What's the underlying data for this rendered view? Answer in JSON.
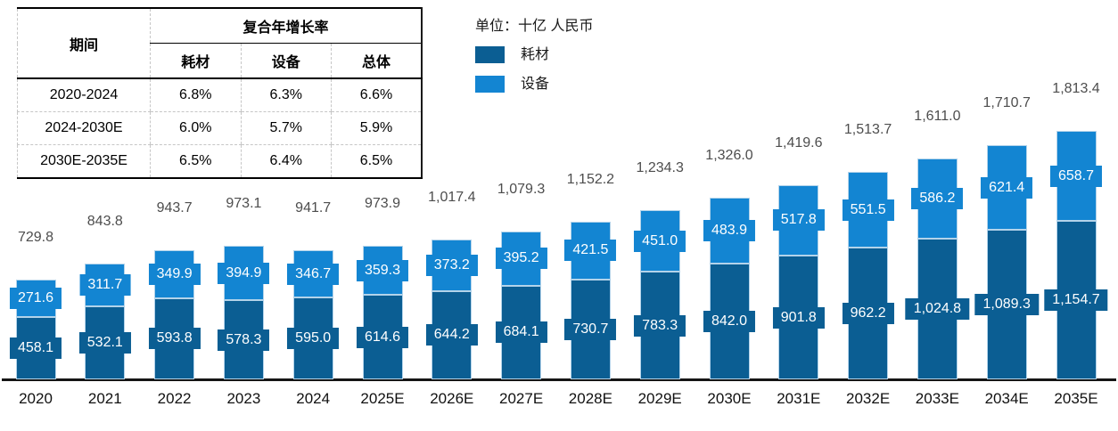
{
  "unit_label": "单位：十亿 人民币",
  "table": {
    "col_period": "期间",
    "col_cagr": "复合年增长率",
    "subcols": [
      "耗材",
      "设备",
      "总体"
    ],
    "rows": [
      {
        "period": "2020-2024",
        "values": [
          "6.8%",
          "6.3%",
          "6.6%"
        ]
      },
      {
        "period": "2024-2030E",
        "values": [
          "6.0%",
          "5.7%",
          "5.9%"
        ]
      },
      {
        "period": "2030E-2035E",
        "values": [
          "6.5%",
          "6.4%",
          "6.5%"
        ]
      }
    ]
  },
  "legend": [
    {
      "name": "耗材",
      "color": "#0b5e93"
    },
    {
      "name": "设备",
      "color": "#1385d2"
    }
  ],
  "colors": {
    "consumables": "#0b5e93",
    "equipment": "#1385d2",
    "bar_border": "#b3d3ea",
    "total_label": "#4d4d4d",
    "axis_line": "#151515"
  },
  "chart_data": {
    "type": "bar",
    "stacked": true,
    "title": "",
    "unit": "十亿 人民币",
    "legend_position": "top-left",
    "grid": false,
    "ylim": [
      0,
      1900
    ],
    "categories": [
      "2020",
      "2021",
      "2022",
      "2023",
      "2024",
      "2025E",
      "2026E",
      "2027E",
      "2028E",
      "2029E",
      "2030E",
      "2031E",
      "2032E",
      "2033E",
      "2034E",
      "2035E"
    ],
    "series": [
      {
        "name": "耗材",
        "color": "#0b5e93",
        "values": [
          458.1,
          532.1,
          593.8,
          578.3,
          595.0,
          614.6,
          644.2,
          684.1,
          730.7,
          783.3,
          842.0,
          901.8,
          962.2,
          1024.8,
          1089.3,
          1154.7
        ],
        "labels": [
          "458.1",
          "532.1",
          "593.8",
          "578.3",
          "595.0",
          "614.6",
          "644.2",
          "684.1",
          "730.7",
          "783.3",
          "842.0",
          "901.8",
          "962.2",
          "1,024.8",
          "1,089.3",
          "1,154.7"
        ]
      },
      {
        "name": "设备",
        "color": "#1385d2",
        "values": [
          271.6,
          311.7,
          349.9,
          394.9,
          346.7,
          359.3,
          373.2,
          395.2,
          421.5,
          451.0,
          483.9,
          517.8,
          551.5,
          586.2,
          621.4,
          658.7
        ],
        "labels": [
          "271.6",
          "311.7",
          "349.9",
          "394.9",
          "346.7",
          "359.3",
          "373.2",
          "395.2",
          "421.5",
          "451.0",
          "483.9",
          "517.8",
          "551.5",
          "586.2",
          "621.4",
          "658.7"
        ]
      }
    ],
    "totals": [
      729.8,
      843.8,
      943.7,
      973.1,
      941.7,
      973.9,
      1017.4,
      1079.3,
      1152.2,
      1234.3,
      1326.0,
      1419.6,
      1513.7,
      1611.0,
      1710.7,
      1813.4
    ],
    "total_labels": [
      "729.8",
      "843.8",
      "943.7",
      "973.1",
      "941.7",
      "973.9",
      "1,017.4",
      "1,079.3",
      "1,152.2",
      "1,234.3",
      "1,326.0",
      "1,419.6",
      "1,513.7",
      "1,611.0",
      "1,710.7",
      "1,813.4"
    ],
    "cagr_table": {
      "rows": [
        {
          "period": "2020-2024",
          "consumables": "6.8%",
          "equipment": "6.3%",
          "overall": "6.6%"
        },
        {
          "period": "2024-2030E",
          "consumables": "6.0%",
          "equipment": "5.7%",
          "overall": "5.9%"
        },
        {
          "period": "2030E-2035E",
          "consumables": "6.5%",
          "equipment": "6.4%",
          "overall": "6.5%"
        }
      ]
    }
  }
}
